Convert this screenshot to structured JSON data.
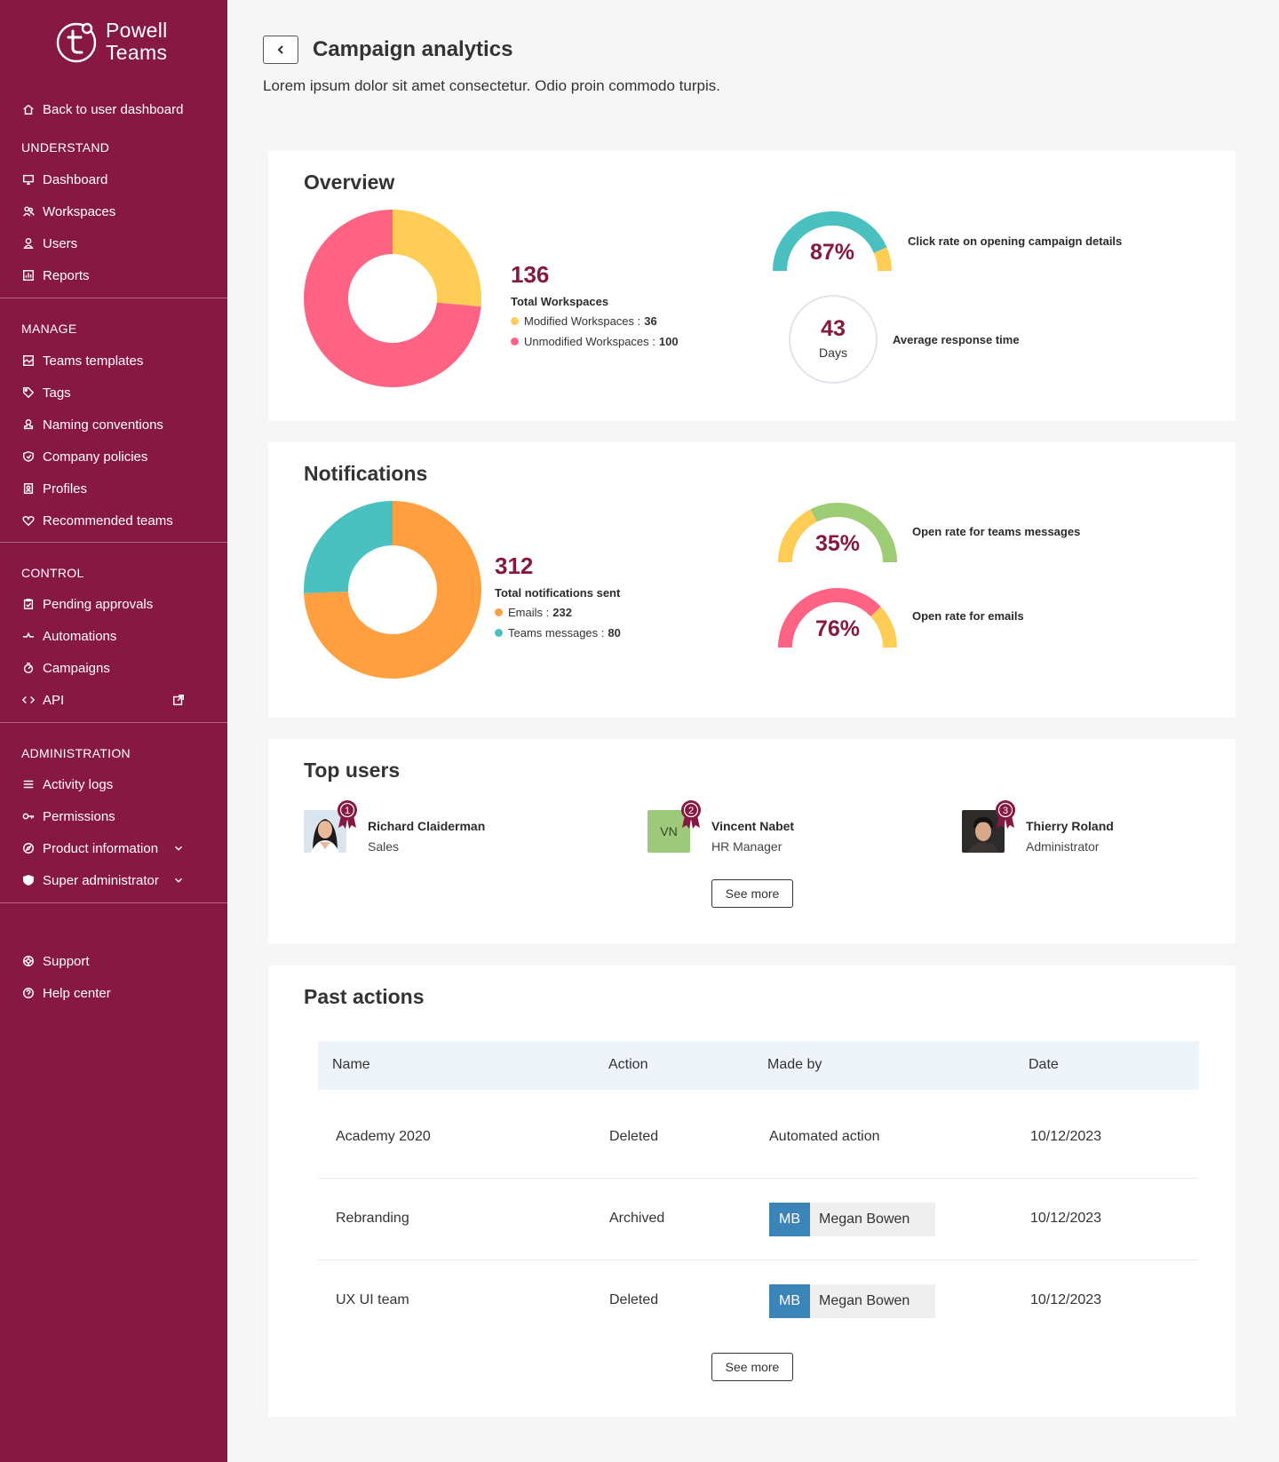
{
  "brand": {
    "line1": "Powell",
    "line2": "Teams"
  },
  "sidebar": {
    "back": "Back to user dashboard",
    "sections": {
      "understand": "UNDERSTAND",
      "manage": "MANAGE",
      "control": "CONTROL",
      "administration": "ADMINISTRATION"
    },
    "understand": [
      "Dashboard",
      "Workspaces",
      "Users",
      "Reports"
    ],
    "manage": [
      "Teams templates",
      "Tags",
      "Naming conventions",
      "Company policies",
      "Profiles",
      "Recommended teams"
    ],
    "control": [
      "Pending approvals",
      "Automations",
      "Campaigns",
      "API"
    ],
    "administration": [
      "Activity logs",
      "Permissions",
      "Product information",
      "Super administrator"
    ],
    "footer": [
      "Support",
      "Help center"
    ]
  },
  "header": {
    "title": "Campaign analytics",
    "subtitle": "Lorem ipsum dolor sit amet consectetur. Odio proin commodo turpis."
  },
  "overview": {
    "title": "Overview",
    "total": "136",
    "total_label": "Total Workspaces",
    "legend": [
      {
        "label": "Modified Workspaces :",
        "value": "36",
        "color": "#ffcd56"
      },
      {
        "label": "Unmodified Workspaces :",
        "value": "100",
        "color": "#ff6384"
      }
    ],
    "click_rate": {
      "value": "87%",
      "label": "Click rate on opening campaign details",
      "fraction": 0.87
    },
    "response": {
      "value": "43",
      "unit": "Days",
      "label": "Average response time"
    }
  },
  "notifications": {
    "title": "Notifications",
    "total": "312",
    "total_label": "Total notifications sent",
    "legend": [
      {
        "label": "Emails :",
        "value": "232",
        "color": "#ff9f40"
      },
      {
        "label": "Teams messages :",
        "value": "80",
        "color": "#4bc0c0"
      }
    ],
    "teams_rate": {
      "value": "35%",
      "label": "Open rate for teams messages",
      "fraction": 0.35
    },
    "email_rate": {
      "value": "76%",
      "label": "Open rate for emails",
      "fraction": 0.76
    }
  },
  "top_users": {
    "title": "Top users",
    "users": [
      {
        "name": "Richard Claiderman",
        "role": "Sales",
        "rank": "1"
      },
      {
        "name": "Vincent Nabet",
        "role": "HR Manager",
        "rank": "2",
        "initials": "VN"
      },
      {
        "name": "Thierry Roland",
        "role": "Administrator",
        "rank": "3"
      }
    ],
    "see_more": "See more"
  },
  "past_actions": {
    "title": "Past actions",
    "columns": [
      "Name",
      "Action",
      "Made by",
      "Date"
    ],
    "rows": [
      {
        "name": "Academy 2020",
        "action": "Deleted",
        "made_by": "Automated action",
        "date": "10/12/2023"
      },
      {
        "name": "Rebranding",
        "action": "Archived",
        "made_by_initials": "MB",
        "made_by": "Megan Bowen",
        "date": "10/12/2023"
      },
      {
        "name": "UX UI team",
        "action": "Deleted",
        "made_by_initials": "MB",
        "made_by": "Megan Bowen",
        "date": "10/12/2023"
      }
    ],
    "see_more": "See more"
  }
}
